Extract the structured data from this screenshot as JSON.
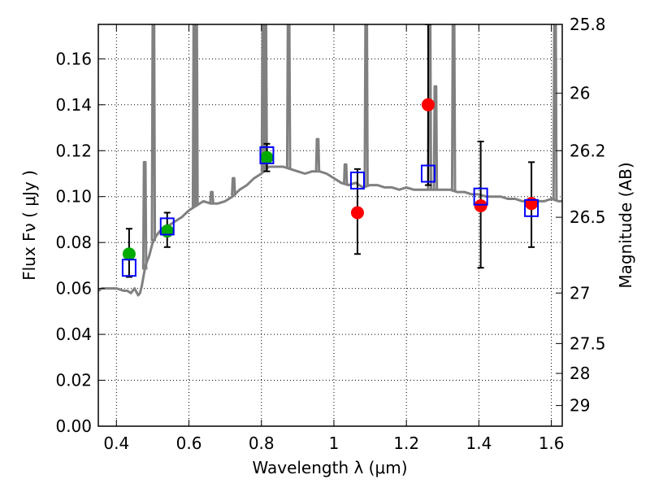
{
  "chart_data": {
    "type": "scatter",
    "xlabel": "Wavelength  λ (μm)",
    "ylabel": "Flux  Fν  ( μJy )",
    "y2label": "Magnitude (AB)",
    "xlim": [
      0.35,
      1.63
    ],
    "ylim": [
      0.0,
      0.175
    ],
    "x_ticks": [
      0.4,
      0.6,
      0.8,
      1.0,
      1.2,
      1.4,
      1.6
    ],
    "x_tick_labels": [
      "0.4",
      "0.6",
      "0.8",
      "1",
      "1.2",
      "1.4",
      "1.6"
    ],
    "y_ticks": [
      0.0,
      0.02,
      0.04,
      0.06,
      0.08,
      0.1,
      0.12,
      0.14,
      0.16
    ],
    "y_tick_labels": [
      "0.00",
      "0.02",
      "0.04",
      "0.06",
      "0.08",
      "0.10",
      "0.12",
      "0.14",
      "0.16"
    ],
    "y2_ticks": [
      {
        "label": "25.8",
        "flux": 0.175
      },
      {
        "label": "26",
        "flux": 0.145
      },
      {
        "label": "26.2",
        "flux": 0.12
      },
      {
        "label": "26.5",
        "flux": 0.091
      },
      {
        "label": "27",
        "flux": 0.058
      },
      {
        "label": "27.5",
        "flux": 0.036
      },
      {
        "label": "28",
        "flux": 0.023
      },
      {
        "label": "29",
        "flux": 0.009
      }
    ],
    "grid": true,
    "colors": {
      "model": "#808080",
      "green": "#00aa00",
      "red": "#ff0000",
      "box": "#0000ff",
      "err": "#000000"
    },
    "series": [
      {
        "kind": "line",
        "color": "#808080",
        "x": [
          0.35,
          0.36,
          0.38,
          0.4,
          0.42,
          0.43,
          0.44,
          0.45,
          0.46,
          0.465,
          0.47,
          0.48,
          0.49,
          0.5,
          0.51,
          0.52,
          0.53,
          0.54,
          0.55,
          0.56,
          0.57,
          0.58,
          0.6,
          0.62,
          0.64,
          0.66,
          0.68,
          0.7,
          0.72,
          0.74,
          0.76,
          0.78,
          0.8,
          0.82,
          0.84,
          0.86,
          0.88,
          0.9,
          0.92,
          0.94,
          0.96,
          0.98,
          1.0,
          1.02,
          1.04,
          1.06,
          1.08,
          1.1,
          1.12,
          1.14,
          1.16,
          1.18,
          1.2,
          1.22,
          1.24,
          1.26,
          1.28,
          1.3,
          1.32,
          1.34,
          1.36,
          1.38,
          1.4,
          1.42,
          1.44,
          1.46,
          1.48,
          1.5,
          1.52,
          1.54,
          1.56,
          1.58,
          1.6,
          1.62,
          1.63
        ],
        "y": [
          0.059,
          0.06,
          0.06,
          0.06,
          0.059,
          0.059,
          0.058,
          0.06,
          0.057,
          0.058,
          0.061,
          0.07,
          0.074,
          0.08,
          0.083,
          0.085,
          0.086,
          0.087,
          0.088,
          0.089,
          0.09,
          0.091,
          0.094,
          0.096,
          0.098,
          0.097,
          0.097,
          0.098,
          0.1,
          0.103,
          0.105,
          0.108,
          0.11,
          0.113,
          0.113,
          0.113,
          0.112,
          0.111,
          0.11,
          0.111,
          0.111,
          0.11,
          0.108,
          0.106,
          0.105,
          0.106,
          0.104,
          0.105,
          0.105,
          0.104,
          0.104,
          0.103,
          0.104,
          0.103,
          0.103,
          0.103,
          0.103,
          0.103,
          0.103,
          0.102,
          0.102,
          0.101,
          0.101,
          0.1,
          0.1,
          0.1,
          0.099,
          0.099,
          0.098,
          0.098,
          0.098,
          0.098,
          0.099,
          0.098,
          0.098
        ]
      },
      {
        "kind": "spikes",
        "color": "#808080",
        "x": [
          0.478,
          0.502,
          0.615,
          0.62,
          0.663,
          0.723,
          0.805,
          0.811,
          0.875,
          0.955,
          1.032,
          1.089,
          1.264,
          1.28,
          1.33,
          1.61
        ],
        "y": [
          0.115,
          0.175,
          0.175,
          0.175,
          0.102,
          0.108,
          0.175,
          0.175,
          0.175,
          0.125,
          0.114,
          0.175,
          0.175,
          0.148,
          0.175,
          0.175
        ]
      },
      {
        "kind": "points",
        "color": "#00aa00",
        "x": [
          0.435,
          0.54,
          0.815
        ],
        "y": [
          0.075,
          0.085,
          0.117
        ],
        "err_low": [
          0.065,
          0.078,
          0.111
        ],
        "err_high": [
          0.086,
          0.093,
          0.123
        ]
      },
      {
        "kind": "points",
        "color": "#ff0000",
        "x": [
          1.065,
          1.26,
          1.405,
          1.545
        ],
        "y": [
          0.093,
          0.14,
          0.096,
          0.097
        ],
        "err_low": [
          0.075,
          0.105,
          0.069,
          0.078
        ],
        "err_high": [
          0.112,
          0.175,
          0.124,
          0.115
        ]
      },
      {
        "kind": "boxes",
        "color": "#0000ff",
        "x": [
          0.435,
          0.54,
          0.815,
          1.065,
          1.26,
          1.405,
          1.545
        ],
        "y": [
          0.069,
          0.087,
          0.118,
          0.107,
          0.11,
          0.1,
          0.095
        ]
      }
    ]
  }
}
